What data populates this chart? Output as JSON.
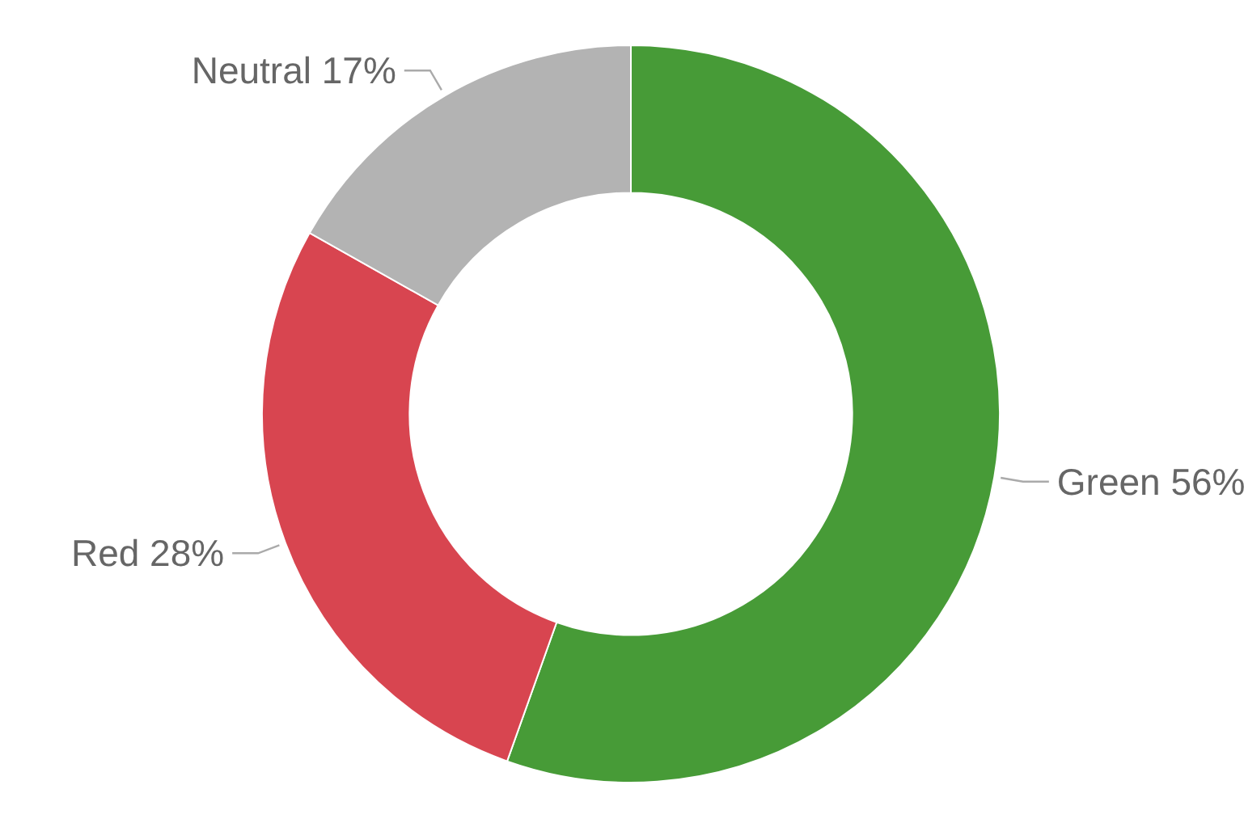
{
  "chart_data": {
    "type": "donut",
    "categories": [
      "Green",
      "Red",
      "Neutral"
    ],
    "values": [
      56,
      28,
      17
    ],
    "value_labels": [
      "56%",
      "28%",
      "17%"
    ],
    "colors": [
      "#479b37",
      "#d84550",
      "#b3b3b3"
    ]
  }
}
